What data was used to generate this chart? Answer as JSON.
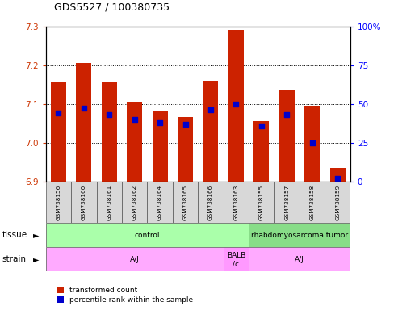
{
  "title": "GDS5527 / 100380735",
  "samples": [
    "GSM738156",
    "GSM738160",
    "GSM738161",
    "GSM738162",
    "GSM738164",
    "GSM738165",
    "GSM738166",
    "GSM738163",
    "GSM738155",
    "GSM738157",
    "GSM738158",
    "GSM738159"
  ],
  "transformed_count": [
    7.155,
    7.205,
    7.155,
    7.105,
    7.08,
    7.065,
    7.16,
    7.29,
    7.055,
    7.135,
    7.095,
    6.935
  ],
  "percentile_rank": [
    44,
    47,
    43,
    40,
    38,
    37,
    46,
    50,
    36,
    43,
    25,
    2
  ],
  "ylim_left": [
    6.9,
    7.3
  ],
  "ylim_right": [
    0,
    100
  ],
  "yticks_left": [
    6.9,
    7.0,
    7.1,
    7.2,
    7.3
  ],
  "yticks_right": [
    0,
    25,
    50,
    75,
    100
  ],
  "bar_color": "#cc2200",
  "dot_color": "#0000cc",
  "tissue_groups": [
    {
      "label": "control",
      "start": 0,
      "end": 8,
      "color": "#aaffaa"
    },
    {
      "label": "rhabdomyosarcoma tumor",
      "start": 8,
      "end": 12,
      "color": "#88dd88"
    }
  ],
  "strain_groups": [
    {
      "label": "A/J",
      "start": 0,
      "end": 7,
      "color": "#ffaaff"
    },
    {
      "label": "BALB\n/c",
      "start": 7,
      "end": 8,
      "color": "#ff99ff"
    },
    {
      "label": "A/J",
      "start": 8,
      "end": 12,
      "color": "#ffaaff"
    }
  ],
  "tissue_label": "tissue",
  "strain_label": "strain",
  "legend_red": "transformed count",
  "legend_blue": "percentile rank within the sample",
  "bar_color_legend": "#cc2200",
  "dot_color_legend": "#0000cc",
  "bar_width": 0.6,
  "base_value": 6.9
}
